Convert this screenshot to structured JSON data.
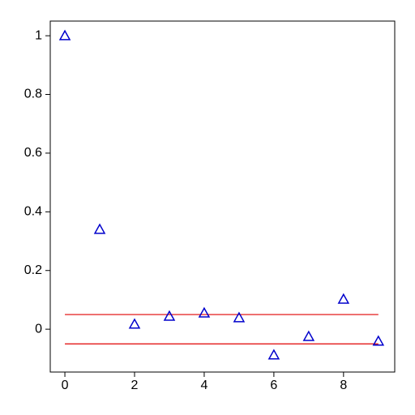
{
  "chart_data": {
    "type": "scatter",
    "x": [
      0,
      1,
      2,
      3,
      4,
      5,
      6,
      7,
      8,
      9
    ],
    "series": [
      {
        "color": "#0000cc",
        "marker": "triangle",
        "values": [
          1.0,
          0.34,
          0.017,
          0.044,
          0.055,
          0.039,
          -0.088,
          -0.025,
          0.102,
          -0.041
        ]
      }
    ],
    "reference_lines": [
      {
        "y": 0.05,
        "x": [
          0,
          9
        ],
        "color": "#e00000"
      },
      {
        "y": -0.05,
        "x": [
          0,
          9
        ],
        "color": "#e00000"
      }
    ],
    "xlim": [
      -0.42,
      9.47
    ],
    "ylim": [
      -0.146,
      1.05
    ],
    "xticks": [
      0,
      2,
      4,
      6,
      8
    ],
    "yticks": [
      0,
      0.2,
      0.4,
      0.6,
      0.8,
      1
    ],
    "grid": false
  }
}
